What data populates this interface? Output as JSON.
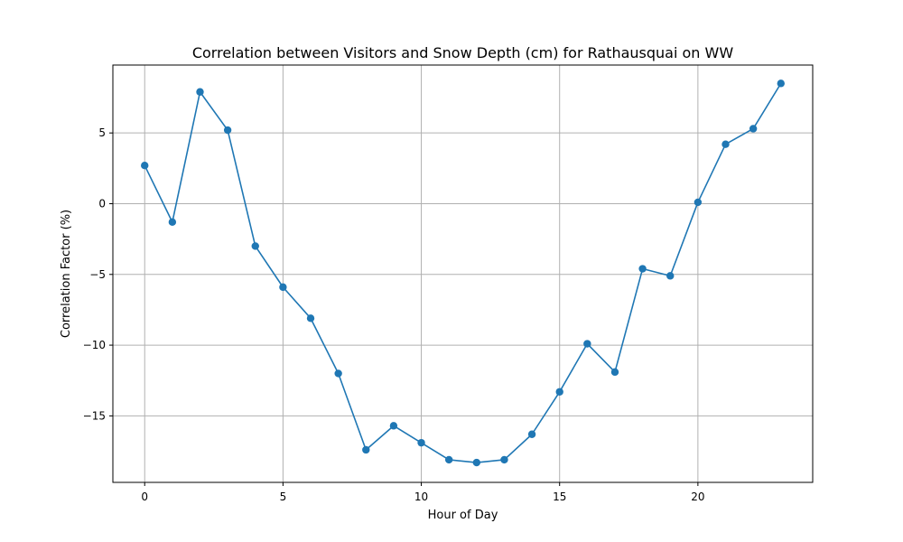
{
  "chart_data": {
    "type": "line",
    "title": "Correlation between Visitors and Snow Depth (cm) for Rathausquai on WW",
    "xlabel": "Hour of Day",
    "ylabel": "Correlation Factor (%)",
    "xlim": [
      -1.15,
      24.15
    ],
    "ylim": [
      -19.7,
      9.8
    ],
    "x_ticks": [
      0,
      5,
      10,
      15,
      20
    ],
    "y_ticks": [
      -15,
      -10,
      -5,
      0,
      5
    ],
    "grid": true,
    "color": "#1f77b4",
    "series": [
      {
        "x": [
          0,
          1,
          2,
          3,
          4,
          5,
          6,
          7,
          8,
          9,
          10,
          11,
          12,
          13,
          14,
          15,
          16,
          17,
          18,
          19,
          20,
          21,
          22,
          23
        ],
        "values": [
          2.7,
          -1.3,
          7.9,
          5.2,
          -3.0,
          -5.9,
          -8.1,
          -12.0,
          -17.4,
          -15.7,
          -16.9,
          -18.1,
          -18.3,
          -18.1,
          -16.3,
          -13.3,
          -9.9,
          -11.9,
          -4.6,
          -5.1,
          0.1,
          4.2,
          5.3,
          8.5
        ]
      }
    ]
  }
}
